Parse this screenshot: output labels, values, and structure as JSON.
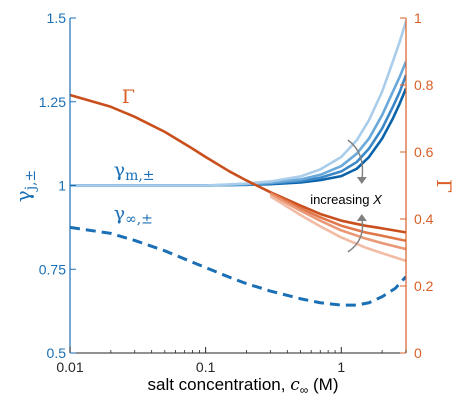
{
  "chart_data": {
    "type": "line",
    "x_scale": "log",
    "xlabel_text": "salt concentration, ",
    "xlabel_sym": "c",
    "xlabel_sub": "∞",
    "xlabel_unit": " (M)",
    "xlim": [
      0.01,
      3.0
    ],
    "x_ticks": [
      {
        "value": 0.01,
        "label": "0.01"
      },
      {
        "value": 0.1,
        "label": "0.1"
      },
      {
        "value": 1,
        "label": "1"
      }
    ],
    "left_axis": {
      "label_sym": "γ",
      "label_sub": "j,±",
      "color": "#1a6fb5",
      "ylim": [
        0.5,
        1.5
      ],
      "ticks": [
        {
          "value": 0.5,
          "label": "0.5"
        },
        {
          "value": 0.75,
          "label": "0.75"
        },
        {
          "value": 1,
          "label": "1"
        },
        {
          "value": 1.25,
          "label": "1.25"
        },
        {
          "value": 1.5,
          "label": "1.5"
        }
      ]
    },
    "right_axis": {
      "label": "Γ",
      "color": "#d95f27",
      "ylim": [
        0,
        1
      ],
      "ticks": [
        {
          "value": 0,
          "label": "0"
        },
        {
          "value": 0.2,
          "label": "0.2"
        },
        {
          "value": 0.4,
          "label": "0.4"
        },
        {
          "value": 0.6,
          "label": "0.6"
        },
        {
          "value": 0.8,
          "label": "0.8"
        },
        {
          "value": 1,
          "label": "1"
        }
      ]
    },
    "series_labels": {
      "gamma_cap": {
        "sym": "Γ",
        "x": 0.021,
        "y_right": 0.77
      },
      "gamma_m": {
        "sym": "γ",
        "sub": "m,±",
        "x": 0.021,
        "y_left": 1.04
      },
      "gamma_inf": {
        "sym": "γ",
        "sub": "∞,±",
        "x": 0.021,
        "y_left": 0.91
      }
    },
    "series": [
      {
        "axis": "left",
        "style": "dashed",
        "color": "#1a6fb5",
        "x": [
          0.01,
          0.02,
          0.03,
          0.05,
          0.08,
          0.1,
          0.15,
          0.2,
          0.3,
          0.5,
          0.7,
          1.0,
          1.3,
          1.6,
          2.0,
          2.5,
          3.0
        ],
        "y": [
          0.875,
          0.857,
          0.836,
          0.805,
          0.771,
          0.755,
          0.726,
          0.707,
          0.685,
          0.662,
          0.65,
          0.643,
          0.643,
          0.65,
          0.668,
          0.693,
          0.728
        ]
      },
      {
        "axis": "left",
        "style": "solid",
        "color": "#0b63aa",
        "x": [
          0.01,
          0.05,
          0.1,
          0.2,
          0.3,
          0.5,
          0.7,
          1.0,
          1.3,
          1.6,
          2.0,
          2.4,
          2.7,
          3.0
        ],
        "y": [
          1.0,
          1.0,
          1.0,
          1.002,
          1.004,
          1.009,
          1.016,
          1.028,
          1.05,
          1.085,
          1.14,
          1.2,
          1.245,
          1.29
        ]
      },
      {
        "axis": "left",
        "style": "solid",
        "color": "#3a88c7",
        "x": [
          0.01,
          0.05,
          0.1,
          0.2,
          0.3,
          0.5,
          0.7,
          1.0,
          1.3,
          1.6,
          2.0,
          2.4,
          2.7,
          3.0
        ],
        "y": [
          1.0,
          1.0,
          1.0,
          1.003,
          1.006,
          1.013,
          1.023,
          1.042,
          1.07,
          1.11,
          1.17,
          1.235,
          1.28,
          1.33
        ]
      },
      {
        "axis": "left",
        "style": "solid",
        "color": "#6aa9da",
        "x": [
          0.01,
          0.05,
          0.1,
          0.2,
          0.3,
          0.5,
          0.7,
          1.0,
          1.3,
          1.6,
          2.0,
          2.4,
          2.7,
          3.0
        ],
        "y": [
          1.0,
          1.0,
          1.0,
          1.004,
          1.008,
          1.018,
          1.032,
          1.058,
          1.095,
          1.14,
          1.21,
          1.28,
          1.325,
          1.37
        ]
      },
      {
        "axis": "left",
        "style": "solid",
        "color": "#a9cdea",
        "x": [
          0.01,
          0.05,
          0.1,
          0.2,
          0.3,
          0.5,
          0.7,
          1.0,
          1.3,
          1.6,
          2.0,
          2.4,
          2.7,
          3.0
        ],
        "y": [
          1.0,
          1.0,
          1.0,
          1.006,
          1.012,
          1.027,
          1.048,
          1.085,
          1.135,
          1.195,
          1.28,
          1.37,
          1.43,
          1.49
        ]
      },
      {
        "axis": "right",
        "style": "solid",
        "color": "#c94f1c",
        "x": [
          0.01,
          0.02,
          0.03,
          0.05,
          0.08,
          0.1,
          0.15,
          0.2,
          0.3,
          0.5,
          0.7,
          1.0,
          1.5,
          2.0,
          3.0
        ],
        "y": [
          0.77,
          0.735,
          0.705,
          0.66,
          0.61,
          0.585,
          0.542,
          0.515,
          0.48,
          0.44,
          0.415,
          0.395,
          0.38,
          0.372,
          0.36
        ]
      },
      {
        "axis": "right",
        "style": "solid",
        "color": "#e0774a",
        "x": [
          0.3,
          0.5,
          0.7,
          1.0,
          1.5,
          2.0,
          3.0
        ],
        "y": [
          0.478,
          0.432,
          0.405,
          0.38,
          0.36,
          0.35,
          0.335
        ]
      },
      {
        "axis": "right",
        "style": "solid",
        "color": "#ea9876",
        "x": [
          0.3,
          0.5,
          0.7,
          1.0,
          1.5,
          2.0,
          3.0
        ],
        "y": [
          0.474,
          0.425,
          0.395,
          0.366,
          0.342,
          0.328,
          0.31
        ]
      },
      {
        "axis": "right",
        "style": "solid",
        "color": "#f2bba4",
        "x": [
          0.3,
          0.5,
          0.7,
          1.0,
          1.5,
          2.0,
          3.0
        ],
        "y": [
          0.468,
          0.412,
          0.378,
          0.345,
          0.315,
          0.298,
          0.275
        ]
      }
    ],
    "annotation": {
      "label": "increasing ",
      "label_var": "X",
      "color": "#808080"
    }
  }
}
